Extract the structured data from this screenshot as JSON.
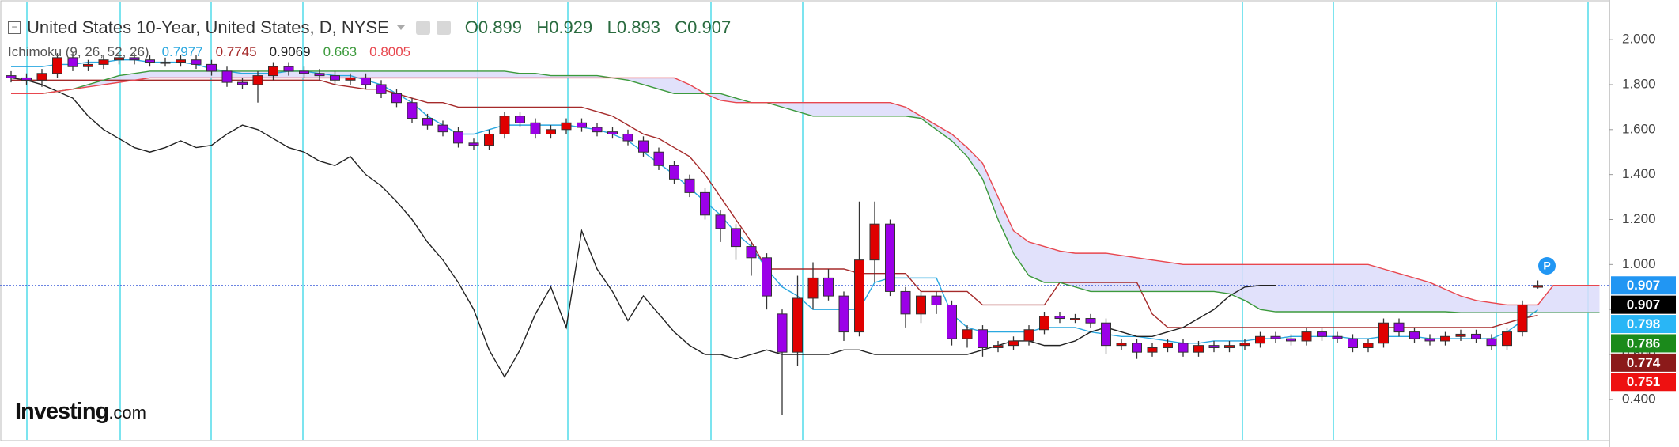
{
  "chart_data": {
    "type": "candlestick",
    "title": "United States 10-Year, United States, D, NYSE",
    "ohlc_legend": [
      {
        "label": "O",
        "value": 0.899
      },
      {
        "label": "H",
        "value": 0.929
      },
      {
        "label": "L",
        "value": 0.893
      },
      {
        "label": "C",
        "value": 0.907
      }
    ],
    "indicator": "Ichimoku (9, 26, 52, 26)",
    "logo": {
      "name": "Investing",
      "suffix": ".com"
    },
    "up_color": "#e00000",
    "down_color": "#9b00e8",
    "cloud_color": "#dcdcfa",
    "ylim": [
      0.22,
      2.15
    ],
    "yticks": [
      {
        "value": 2.0,
        "label": "2.000"
      },
      {
        "value": 1.8,
        "label": "1.800"
      },
      {
        "value": 1.6,
        "label": "1.600"
      },
      {
        "value": 1.4,
        "label": "1.400"
      },
      {
        "value": 1.2,
        "label": "1.200"
      },
      {
        "value": 1.0,
        "label": "1.000"
      },
      {
        "value": 0.8,
        "label": "0.800"
      },
      {
        "value": 0.6,
        "label": "0.600"
      },
      {
        "value": 0.4,
        "label": "0.400"
      }
    ],
    "open": [
      1.84,
      1.83,
      1.82,
      1.85,
      1.92,
      1.88,
      1.89,
      1.91,
      1.92,
      1.91,
      1.9,
      1.9,
      1.91,
      1.89,
      1.86,
      1.81,
      1.8,
      1.84,
      1.88,
      1.86,
      1.85,
      1.84,
      1.82,
      1.83,
      1.8,
      1.76,
      1.72,
      1.65,
      1.62,
      1.59,
      1.54,
      1.53,
      1.58,
      1.66,
      1.63,
      1.58,
      1.6,
      1.63,
      1.61,
      1.59,
      1.58,
      1.55,
      1.5,
      1.44,
      1.38,
      1.32,
      1.22,
      1.16,
      1.08,
      1.03,
      0.78,
      0.61,
      0.85,
      0.94,
      0.86,
      0.7,
      1.02,
      1.18,
      0.88,
      0.78,
      0.86,
      0.82,
      0.67,
      0.71,
      0.63,
      0.64,
      0.66,
      0.71,
      0.77,
      0.76,
      0.76,
      0.74,
      0.64,
      0.65,
      0.61,
      0.63,
      0.65,
      0.61,
      0.64,
      0.63,
      0.64,
      0.65,
      0.68,
      0.67,
      0.66,
      0.7,
      0.68,
      0.67,
      0.63,
      0.65,
      0.74,
      0.7,
      0.67,
      0.66,
      0.68,
      0.69,
      0.67,
      0.64,
      0.7,
      0.899
    ],
    "high": [
      1.86,
      1.85,
      1.87,
      1.94,
      1.94,
      1.91,
      1.93,
      1.94,
      1.94,
      1.93,
      1.92,
      1.93,
      1.93,
      1.91,
      1.88,
      1.83,
      1.86,
      1.9,
      1.9,
      1.88,
      1.87,
      1.86,
      1.85,
      1.85,
      1.82,
      1.78,
      1.74,
      1.67,
      1.64,
      1.61,
      1.56,
      1.6,
      1.68,
      1.68,
      1.65,
      1.62,
      1.65,
      1.65,
      1.63,
      1.61,
      1.6,
      1.57,
      1.52,
      1.46,
      1.4,
      1.34,
      1.24,
      1.18,
      1.1,
      1.05,
      0.8,
      0.95,
      1.01,
      0.98,
      0.88,
      1.28,
      1.28,
      1.2,
      0.9,
      0.88,
      0.88,
      0.84,
      0.73,
      0.73,
      0.66,
      0.68,
      0.73,
      0.79,
      0.79,
      0.78,
      0.78,
      0.76,
      0.67,
      0.67,
      0.65,
      0.67,
      0.67,
      0.66,
      0.66,
      0.66,
      0.67,
      0.7,
      0.7,
      0.69,
      0.72,
      0.72,
      0.7,
      0.69,
      0.67,
      0.76,
      0.76,
      0.72,
      0.69,
      0.7,
      0.71,
      0.71,
      0.69,
      0.72,
      0.84,
      0.929
    ],
    "low": [
      1.81,
      1.8,
      1.79,
      1.83,
      1.86,
      1.86,
      1.87,
      1.89,
      1.89,
      1.88,
      1.88,
      1.88,
      1.87,
      1.84,
      1.79,
      1.78,
      1.72,
      1.82,
      1.84,
      1.83,
      1.82,
      1.8,
      1.8,
      1.78,
      1.74,
      1.7,
      1.63,
      1.6,
      1.57,
      1.52,
      1.51,
      1.51,
      1.56,
      1.61,
      1.56,
      1.56,
      1.58,
      1.59,
      1.57,
      1.56,
      1.53,
      1.48,
      1.42,
      1.36,
      1.3,
      1.2,
      1.1,
      1.02,
      0.95,
      0.8,
      0.33,
      0.55,
      0.8,
      0.84,
      0.66,
      0.68,
      0.92,
      0.86,
      0.72,
      0.74,
      0.78,
      0.64,
      0.63,
      0.59,
      0.61,
      0.62,
      0.64,
      0.69,
      0.74,
      0.74,
      0.72,
      0.6,
      0.62,
      0.58,
      0.59,
      0.61,
      0.59,
      0.59,
      0.61,
      0.61,
      0.62,
      0.63,
      0.65,
      0.64,
      0.64,
      0.66,
      0.65,
      0.61,
      0.61,
      0.63,
      0.68,
      0.65,
      0.64,
      0.64,
      0.66,
      0.65,
      0.62,
      0.62,
      0.68,
      0.893
    ],
    "close": [
      1.83,
      1.82,
      1.85,
      1.92,
      1.88,
      1.89,
      1.91,
      1.92,
      1.91,
      1.9,
      1.9,
      1.91,
      1.89,
      1.86,
      1.81,
      1.8,
      1.84,
      1.88,
      1.86,
      1.85,
      1.84,
      1.82,
      1.83,
      1.8,
      1.76,
      1.72,
      1.65,
      1.62,
      1.59,
      1.54,
      1.53,
      1.58,
      1.66,
      1.63,
      1.58,
      1.6,
      1.63,
      1.61,
      1.59,
      1.58,
      1.55,
      1.5,
      1.44,
      1.38,
      1.32,
      1.22,
      1.16,
      1.08,
      1.03,
      0.86,
      0.61,
      0.85,
      0.94,
      0.86,
      0.7,
      1.02,
      1.18,
      0.88,
      0.78,
      0.86,
      0.82,
      0.67,
      0.71,
      0.63,
      0.64,
      0.66,
      0.71,
      0.77,
      0.76,
      0.76,
      0.74,
      0.64,
      0.65,
      0.61,
      0.63,
      0.65,
      0.61,
      0.64,
      0.63,
      0.64,
      0.65,
      0.68,
      0.67,
      0.66,
      0.7,
      0.68,
      0.67,
      0.63,
      0.65,
      0.74,
      0.7,
      0.67,
      0.66,
      0.68,
      0.69,
      0.67,
      0.64,
      0.7,
      0.82,
      0.907
    ],
    "lines": [
      {
        "color": "#2aa8e0",
        "legend_value": 0.7977,
        "values": [
          1.88,
          1.88,
          1.88,
          1.89,
          1.89,
          1.9,
          1.9,
          1.91,
          1.91,
          1.9,
          1.9,
          1.9,
          1.89,
          1.87,
          1.86,
          1.85,
          1.85,
          1.85,
          1.86,
          1.86,
          1.85,
          1.84,
          1.84,
          1.82,
          1.8,
          1.76,
          1.72,
          1.66,
          1.62,
          1.58,
          1.58,
          1.6,
          1.62,
          1.62,
          1.62,
          1.62,
          1.62,
          1.61,
          1.6,
          1.58,
          1.55,
          1.5,
          1.45,
          1.4,
          1.34,
          1.28,
          1.22,
          1.14,
          1.08,
          0.98,
          0.9,
          0.86,
          0.8,
          0.8,
          0.8,
          0.8,
          0.92,
          0.94,
          0.94,
          0.94,
          0.94,
          0.78,
          0.72,
          0.7,
          0.7,
          0.7,
          0.7,
          0.72,
          0.72,
          0.72,
          0.7,
          0.69,
          0.68,
          0.68,
          0.67,
          0.66,
          0.65,
          0.65,
          0.66,
          0.66,
          0.66,
          0.67,
          0.67,
          0.68,
          0.68,
          0.68,
          0.68,
          0.67,
          0.67,
          0.68,
          0.68,
          0.68,
          0.67,
          0.67,
          0.67,
          0.67,
          0.67,
          0.7,
          0.75,
          0.798
        ]
      },
      {
        "color": "#a52a2a",
        "legend_value": 0.7745,
        "values": [
          1.82,
          1.82,
          1.82,
          1.82,
          1.82,
          1.82,
          1.82,
          1.82,
          1.82,
          1.82,
          1.82,
          1.82,
          1.82,
          1.82,
          1.82,
          1.82,
          1.82,
          1.82,
          1.82,
          1.82,
          1.82,
          1.8,
          1.79,
          1.78,
          1.78,
          1.76,
          1.74,
          1.72,
          1.72,
          1.7,
          1.7,
          1.7,
          1.7,
          1.7,
          1.7,
          1.7,
          1.7,
          1.7,
          1.68,
          1.66,
          1.62,
          1.58,
          1.56,
          1.52,
          1.48,
          1.4,
          1.3,
          1.2,
          1.1,
          0.98,
          0.98,
          0.98,
          0.98,
          0.98,
          0.98,
          0.96,
          0.96,
          0.96,
          0.96,
          0.88,
          0.88,
          0.88,
          0.88,
          0.82,
          0.82,
          0.82,
          0.82,
          0.82,
          0.92,
          0.92,
          0.92,
          0.92,
          0.92,
          0.92,
          0.78,
          0.72,
          0.72,
          0.72,
          0.72,
          0.72,
          0.72,
          0.72,
          0.72,
          0.72,
          0.72,
          0.72,
          0.72,
          0.72,
          0.72,
          0.72,
          0.72,
          0.72,
          0.72,
          0.72,
          0.72,
          0.72,
          0.72,
          0.74,
          0.76,
          0.774
        ]
      },
      {
        "color": "#222222",
        "legend_value": 0.9069,
        "values": [
          1.83,
          1.82,
          1.8,
          1.77,
          1.74,
          1.66,
          1.6,
          1.56,
          1.52,
          1.5,
          1.52,
          1.55,
          1.52,
          1.53,
          1.58,
          1.62,
          1.6,
          1.56,
          1.52,
          1.5,
          1.46,
          1.44,
          1.48,
          1.4,
          1.35,
          1.28,
          1.2,
          1.1,
          1.02,
          0.92,
          0.8,
          0.62,
          0.5,
          0.62,
          0.78,
          0.9,
          0.72,
          1.15,
          0.98,
          0.88,
          0.75,
          0.86,
          0.78,
          0.7,
          0.64,
          0.6,
          0.6,
          0.58,
          0.6,
          0.62,
          0.6,
          0.6,
          0.6,
          0.6,
          0.62,
          0.62,
          0.6,
          0.6,
          0.6,
          0.6,
          0.6,
          0.6,
          0.6,
          0.62,
          0.64,
          0.66,
          0.66,
          0.64,
          0.64,
          0.66,
          0.7,
          0.72,
          0.7,
          0.68,
          0.68,
          0.7,
          0.72,
          0.76,
          0.8,
          0.86,
          0.9,
          0.907,
          0.907,
          null,
          null,
          null,
          null,
          null,
          null,
          null,
          null,
          null,
          null,
          null,
          null,
          null,
          null,
          null,
          null,
          null
        ]
      },
      {
        "color": "#3c9a3c",
        "legend_value": 0.663,
        "values": [
          1.76,
          1.76,
          1.76,
          1.77,
          1.78,
          1.8,
          1.82,
          1.84,
          1.85,
          1.86,
          1.86,
          1.86,
          1.86,
          1.86,
          1.86,
          1.86,
          1.86,
          1.86,
          1.86,
          1.86,
          1.86,
          1.86,
          1.86,
          1.86,
          1.86,
          1.86,
          1.86,
          1.86,
          1.86,
          1.86,
          1.86,
          1.86,
          1.86,
          1.85,
          1.85,
          1.84,
          1.84,
          1.84,
          1.84,
          1.83,
          1.82,
          1.8,
          1.78,
          1.76,
          1.76,
          1.76,
          1.76,
          1.74,
          1.72,
          1.72,
          1.7,
          1.68,
          1.66,
          1.66,
          1.66,
          1.66,
          1.66,
          1.66,
          1.66,
          1.65,
          1.6,
          1.55,
          1.48,
          1.38,
          1.2,
          1.05,
          0.95,
          0.92,
          0.92,
          0.9,
          0.88,
          0.88,
          0.88,
          0.88,
          0.88,
          0.88,
          0.88,
          0.88,
          0.88,
          0.87,
          0.84,
          0.8,
          0.79,
          0.79,
          0.79,
          0.79,
          0.79,
          0.79,
          0.79,
          0.79,
          0.79,
          0.79,
          0.79,
          0.79,
          0.786,
          0.786,
          0.786,
          0.786,
          0.786,
          0.786,
          0.786,
          0.786,
          0.786,
          0.786
        ]
      },
      {
        "color": "#e8474f",
        "legend_value": 0.8005,
        "values": [
          1.76,
          1.76,
          1.76,
          1.77,
          1.78,
          1.79,
          1.8,
          1.81,
          1.82,
          1.83,
          1.83,
          1.83,
          1.83,
          1.83,
          1.83,
          1.83,
          1.83,
          1.83,
          1.83,
          1.83,
          1.83,
          1.83,
          1.83,
          1.83,
          1.83,
          1.83,
          1.83,
          1.83,
          1.83,
          1.83,
          1.83,
          1.83,
          1.83,
          1.83,
          1.83,
          1.83,
          1.83,
          1.83,
          1.83,
          1.83,
          1.83,
          1.83,
          1.83,
          1.83,
          1.8,
          1.76,
          1.73,
          1.72,
          1.72,
          1.72,
          1.72,
          1.72,
          1.72,
          1.72,
          1.72,
          1.72,
          1.72,
          1.72,
          1.7,
          1.66,
          1.62,
          1.58,
          1.52,
          1.45,
          1.3,
          1.15,
          1.1,
          1.08,
          1.06,
          1.05,
          1.05,
          1.05,
          1.04,
          1.03,
          1.02,
          1.01,
          1.0,
          1.0,
          1.0,
          1.0,
          1.0,
          1.0,
          1.0,
          1.0,
          1.0,
          1.0,
          1.0,
          1.0,
          1.0,
          0.98,
          0.96,
          0.94,
          0.92,
          0.89,
          0.86,
          0.84,
          0.83,
          0.82,
          0.82,
          0.82,
          0.907,
          0.907,
          0.907,
          0.907
        ]
      }
    ],
    "price_tags": [
      {
        "value": 0.907,
        "color": "#2196f3"
      },
      {
        "value": 0.907,
        "color": "#000000"
      },
      {
        "value": 0.798,
        "color": "#29b6f6"
      },
      {
        "value": 0.786,
        "color": "#1b8a1b"
      },
      {
        "value": 0.774,
        "color": "#8b1a1a"
      },
      {
        "value": 0.751,
        "color": "#ee1111"
      }
    ]
  }
}
